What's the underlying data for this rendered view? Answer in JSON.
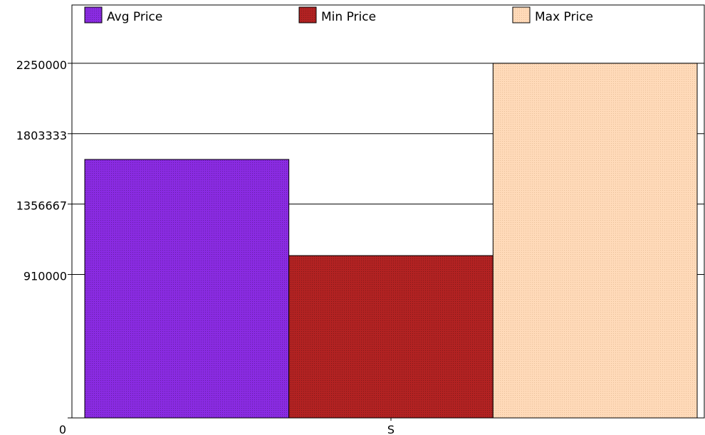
{
  "chart_data": {
    "type": "bar",
    "categories": [
      "S"
    ],
    "series": [
      {
        "name": "Avg Price",
        "values": [
          1640000
        ],
        "color": "#8a2be2",
        "pattern": "dots-dark"
      },
      {
        "name": "Min Price",
        "values": [
          1030000
        ],
        "color": "#b22222",
        "pattern": "dots-dark"
      },
      {
        "name": "Max Price",
        "values": [
          2250000
        ],
        "color": "#ffdab9",
        "pattern": "dots-light"
      }
    ],
    "y_ticks": [
      "0",
      "910000",
      "1356667",
      "1803333",
      "2250000"
    ],
    "ylim": [
      0,
      2620000
    ],
    "grid": true,
    "legend_position": "top",
    "title": "",
    "xlabel": "",
    "ylabel": ""
  }
}
